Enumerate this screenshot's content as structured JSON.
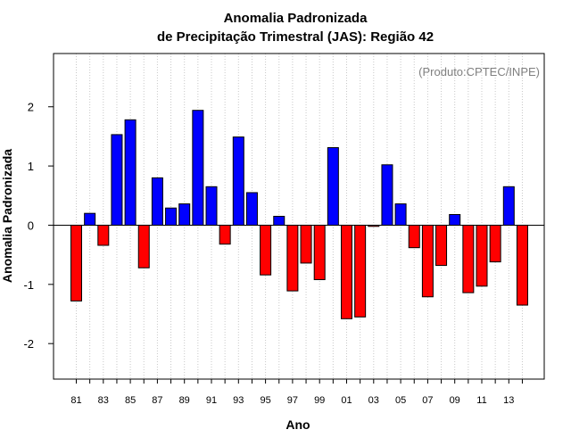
{
  "chart_data": {
    "type": "bar",
    "title": "Anomalia Padronizada",
    "subtitle": "de Precipitação Trimestral (JAS): Região 42",
    "xlabel": "Ano",
    "ylabel": "Anomalia Padronizada",
    "credit": "(Produto:CPTEC/INPE)",
    "ylim": [
      -2.6,
      2.9
    ],
    "yticks": [
      -2,
      -1,
      0,
      1,
      2
    ],
    "grid": "vertical dotted",
    "positive_color": "#0000ff",
    "negative_color": "#ff0000",
    "categories": [
      "81",
      "82",
      "83",
      "84",
      "85",
      "86",
      "87",
      "88",
      "89",
      "90",
      "91",
      "92",
      "93",
      "94",
      "95",
      "96",
      "97",
      "98",
      "99",
      "00",
      "01",
      "02",
      "03",
      "04",
      "05",
      "06",
      "07",
      "08",
      "09",
      "10",
      "11",
      "12",
      "13",
      "14"
    ],
    "tick_labels": [
      "81",
      "",
      "83",
      "",
      "85",
      "",
      "87",
      "",
      "89",
      "",
      "91",
      "",
      "93",
      "",
      "95",
      "",
      "97",
      "",
      "99",
      "",
      "01",
      "",
      "03",
      "",
      "05",
      "",
      "07",
      "",
      "09",
      "",
      "11",
      "",
      "13",
      ""
    ],
    "values": [
      -1.28,
      0.2,
      -0.34,
      1.53,
      1.78,
      -0.72,
      0.8,
      0.29,
      0.36,
      1.94,
      0.65,
      -0.32,
      1.49,
      0.55,
      -0.84,
      0.15,
      -1.11,
      -0.64,
      -0.92,
      1.31,
      -1.58,
      -1.55,
      -0.02,
      1.02,
      0.36,
      -0.38,
      -1.21,
      -0.68,
      0.18,
      -1.14,
      -1.03,
      -0.62,
      0.65,
      -1.35
    ]
  }
}
